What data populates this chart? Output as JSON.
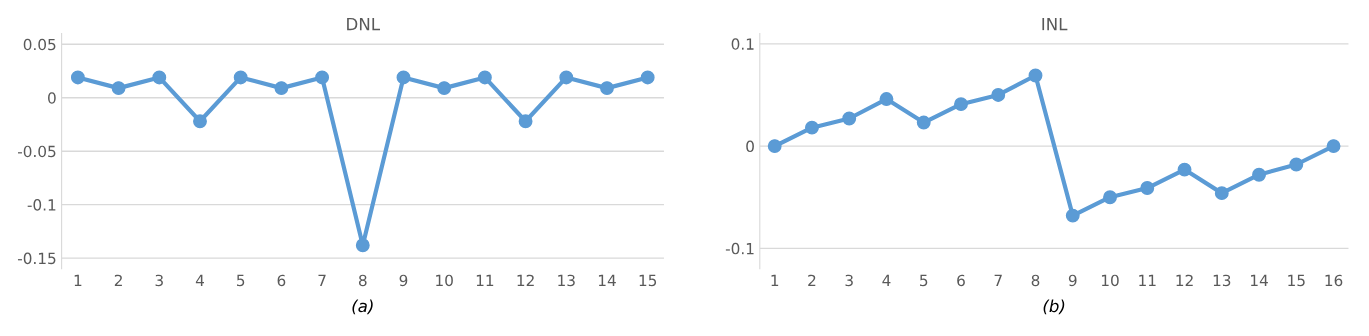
{
  "chart_data": [
    {
      "type": "line",
      "title": "DNL",
      "xlabel": "(a)",
      "categories": [
        "1",
        "2",
        "3",
        "4",
        "5",
        "6",
        "7",
        "8",
        "9",
        "10",
        "11",
        "12",
        "13",
        "14",
        "15"
      ],
      "series": [
        {
          "color": "#5b9bd5",
          "values": [
            0.019,
            0.009,
            0.019,
            -0.022,
            0.019,
            0.009,
            0.019,
            -0.138,
            0.019,
            0.009,
            0.019,
            -0.022,
            0.019,
            0.009,
            0.019
          ]
        }
      ],
      "ylim": [
        -0.16,
        0.06
      ],
      "yticks": [
        {
          "value": -0.15,
          "label": "-0.15"
        },
        {
          "value": -0.1,
          "label": "-0.1"
        },
        {
          "value": -0.05,
          "label": "-0.05"
        },
        0,
        0.05
      ],
      "grid": "y",
      "marker": "circle",
      "line_style": "solid"
    },
    {
      "type": "line",
      "title": "INL",
      "xlabel": "(b)",
      "categories": [
        "1",
        "2",
        "3",
        "4",
        "5",
        "6",
        "7",
        "8",
        "9",
        "10",
        "11",
        "12",
        "13",
        "14",
        "15",
        "16"
      ],
      "series": [
        {
          "color": "#5b9bd5",
          "values": [
            0,
            0.018,
            0.027,
            0.046,
            0.023,
            0.041,
            0.05,
            0.069,
            -0.068,
            -0.05,
            -0.041,
            -0.023,
            -0.046,
            -0.028,
            -0.018,
            0
          ]
        }
      ],
      "ylim": [
        -0.12,
        0.11
      ],
      "yticks": [
        {
          "value": -0.1,
          "label": "-0.1"
        },
        0,
        0.1
      ],
      "grid": "y",
      "marker": "circle",
      "line_style": "solid"
    }
  ]
}
